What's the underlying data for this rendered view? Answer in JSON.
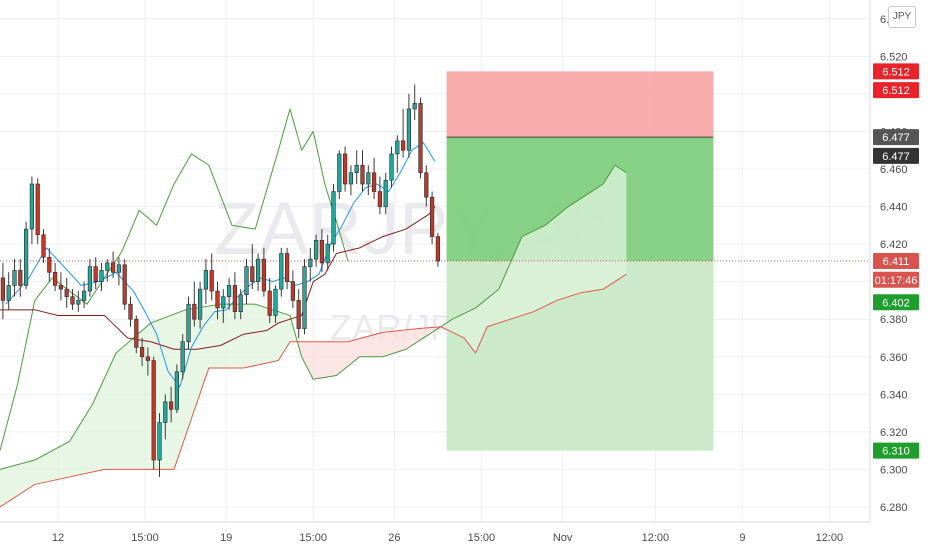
{
  "symbol_watermark": "ZARJPY, 4h",
  "symbol_sub_watermark": "ZAR/JPY",
  "currency_button": "JPY",
  "colors": {
    "up": "#26a69a",
    "down": "#c0392b",
    "grid": "#eceff4",
    "axis_bg": "#ffffff",
    "stop_zone": "#f7a3a3",
    "target_zone": "#7fcf7f",
    "target_zone_light": "#c7e8c3",
    "kijun": "#8b1c1c",
    "tenkan": "#2196f3",
    "chikou": "#4a9d3a",
    "span_a": "#4a9d3a",
    "span_b": "#e05a4a",
    "price_line": "#d9534f"
  },
  "chart_data": {
    "type": "candlestick",
    "title": "",
    "ylim": [
      6.272,
      6.55
    ],
    "y_ticks": [
      "6.540",
      "6.520",
      "6.500",
      "6.480",
      "6.460",
      "6.440",
      "6.420",
      "6.400",
      "6.380",
      "6.360",
      "6.340",
      "6.320",
      "6.300",
      "6.280"
    ],
    "x_ticks": [
      {
        "label": "12",
        "t": 10
      },
      {
        "label": "15:00",
        "t": 25
      },
      {
        "label": "19",
        "t": 39
      },
      {
        "label": "15:00",
        "t": 54
      },
      {
        "label": "26",
        "t": 68
      },
      {
        "label": "15:00",
        "t": 83
      },
      {
        "label": "Nov",
        "t": 97
      },
      {
        "label": "12:00",
        "t": 113
      },
      {
        "label": "9",
        "t": 128
      },
      {
        "label": "12:00",
        "t": 143
      }
    ],
    "x_range": [
      0,
      150
    ],
    "ohlc": [
      [
        6.402,
        6.41,
        6.38,
        6.39
      ],
      [
        6.39,
        6.405,
        6.385,
        6.398
      ],
      [
        6.398,
        6.412,
        6.392,
        6.406
      ],
      [
        6.406,
        6.412,
        6.392,
        6.398
      ],
      [
        6.398,
        6.432,
        6.396,
        6.428
      ],
      [
        6.428,
        6.456,
        6.42,
        6.452
      ],
      [
        6.452,
        6.455,
        6.42,
        6.425
      ],
      [
        6.425,
        6.428,
        6.41,
        6.413
      ],
      [
        6.413,
        6.418,
        6.4,
        6.405
      ],
      [
        6.405,
        6.41,
        6.395,
        6.398
      ],
      [
        6.398,
        6.405,
        6.39,
        6.396
      ],
      [
        6.396,
        6.402,
        6.386,
        6.392
      ],
      [
        6.392,
        6.396,
        6.385,
        6.388
      ],
      [
        6.388,
        6.395,
        6.384,
        6.39
      ],
      [
        6.39,
        6.4,
        6.386,
        6.395
      ],
      [
        6.395,
        6.412,
        6.392,
        6.408
      ],
      [
        6.408,
        6.413,
        6.396,
        6.4
      ],
      [
        6.4,
        6.41,
        6.395,
        6.406
      ],
      [
        6.406,
        6.412,
        6.4,
        6.41
      ],
      [
        6.41,
        6.416,
        6.402,
        6.405
      ],
      [
        6.405,
        6.413,
        6.398,
        6.409
      ],
      [
        6.409,
        6.412,
        6.385,
        6.388
      ],
      [
        6.388,
        6.392,
        6.376,
        6.38
      ],
      [
        6.38,
        6.382,
        6.362,
        6.365
      ],
      [
        6.365,
        6.37,
        6.355,
        6.36
      ],
      [
        6.36,
        6.365,
        6.35,
        6.358
      ],
      [
        6.358,
        6.36,
        6.3,
        6.305
      ],
      [
        6.305,
        6.33,
        6.296,
        6.325
      ],
      [
        6.325,
        6.34,
        6.316,
        6.336
      ],
      [
        6.336,
        6.344,
        6.325,
        6.332
      ],
      [
        6.332,
        6.356,
        6.33,
        6.352
      ],
      [
        6.352,
        6.372,
        6.348,
        6.368
      ],
      [
        6.368,
        6.392,
        6.364,
        6.388
      ],
      [
        6.388,
        6.4,
        6.376,
        6.38
      ],
      [
        6.38,
        6.4,
        6.375,
        6.396
      ],
      [
        6.396,
        6.412,
        6.388,
        6.406
      ],
      [
        6.406,
        6.415,
        6.39,
        6.395
      ],
      [
        6.395,
        6.4,
        6.38,
        6.386
      ],
      [
        6.386,
        6.396,
        6.378,
        6.392
      ],
      [
        6.392,
        6.402,
        6.385,
        6.398
      ],
      [
        6.398,
        6.405,
        6.38,
        6.384
      ],
      [
        6.384,
        6.396,
        6.38,
        6.393
      ],
      [
        6.393,
        6.412,
        6.388,
        6.408
      ],
      [
        6.408,
        6.42,
        6.396,
        6.4
      ],
      [
        6.4,
        6.415,
        6.395,
        6.412
      ],
      [
        6.412,
        6.418,
        6.392,
        6.395
      ],
      [
        6.395,
        6.402,
        6.378,
        6.382
      ],
      [
        6.382,
        6.398,
        6.378,
        6.396
      ],
      [
        6.396,
        6.418,
        6.392,
        6.415
      ],
      [
        6.415,
        6.418,
        6.396,
        6.4
      ],
      [
        6.4,
        6.406,
        6.386,
        6.39
      ],
      [
        6.39,
        6.396,
        6.37,
        6.375
      ],
      [
        6.375,
        6.412,
        6.372,
        6.408
      ],
      [
        6.408,
        6.418,
        6.4,
        6.412
      ],
      [
        6.412,
        6.425,
        6.408,
        6.422
      ],
      [
        6.422,
        6.428,
        6.405,
        6.41
      ],
      [
        6.41,
        6.425,
        6.406,
        6.42
      ],
      [
        6.42,
        6.452,
        6.416,
        6.448
      ],
      [
        6.448,
        6.47,
        6.444,
        6.468
      ],
      [
        6.468,
        6.472,
        6.448,
        6.452
      ],
      [
        6.452,
        6.462,
        6.446,
        6.458
      ],
      [
        6.458,
        6.47,
        6.452,
        6.462
      ],
      [
        6.462,
        6.47,
        6.448,
        6.452
      ],
      [
        6.452,
        6.462,
        6.446,
        6.458
      ],
      [
        6.458,
        6.466,
        6.444,
        6.448
      ],
      [
        6.448,
        6.456,
        6.436,
        6.44
      ],
      [
        6.44,
        6.458,
        6.436,
        6.454
      ],
      [
        6.454,
        6.472,
        6.45,
        6.468
      ],
      [
        6.468,
        6.478,
        6.458,
        6.475
      ],
      [
        6.475,
        6.492,
        6.466,
        6.47
      ],
      [
        6.47,
        6.5,
        6.466,
        6.492
      ],
      [
        6.492,
        6.505,
        6.486,
        6.495
      ],
      [
        6.495,
        6.498,
        6.455,
        6.458
      ],
      [
        6.458,
        6.462,
        6.44,
        6.445
      ],
      [
        6.445,
        6.448,
        6.42,
        6.424
      ],
      [
        6.424,
        6.426,
        6.408,
        6.411
      ]
    ],
    "overlays": {
      "tenkan": [
        [
          1,
          6.388
        ],
        [
          5,
          6.402
        ],
        [
          8,
          6.418
        ],
        [
          11,
          6.408
        ],
        [
          14,
          6.398
        ],
        [
          17,
          6.4
        ],
        [
          20,
          6.405
        ],
        [
          23,
          6.395
        ],
        [
          25,
          6.384
        ],
        [
          27,
          6.372
        ],
        [
          29,
          6.352
        ],
        [
          31,
          6.344
        ],
        [
          33,
          6.365
        ],
        [
          35,
          6.376
        ],
        [
          37,
          6.384
        ],
        [
          39,
          6.385
        ],
        [
          41,
          6.392
        ],
        [
          43,
          6.398
        ],
        [
          45,
          6.402
        ],
        [
          47,
          6.4
        ],
        [
          49,
          6.402
        ],
        [
          51,
          6.398
        ],
        [
          53,
          6.4
        ],
        [
          55,
          6.404
        ],
        [
          57,
          6.42
        ],
        [
          59,
          6.43
        ],
        [
          61,
          6.442
        ],
        [
          63,
          6.45
        ],
        [
          65,
          6.452
        ],
        [
          67,
          6.448
        ],
        [
          69,
          6.458
        ],
        [
          71,
          6.47
        ],
        [
          73,
          6.474
        ],
        [
          75,
          6.464
        ]
      ],
      "kijun": [
        [
          0,
          6.385
        ],
        [
          6,
          6.385
        ],
        [
          10,
          6.382
        ],
        [
          14,
          6.382
        ],
        [
          18,
          6.382
        ],
        [
          22,
          6.37
        ],
        [
          26,
          6.368
        ],
        [
          30,
          6.364
        ],
        [
          34,
          6.364
        ],
        [
          38,
          6.366
        ],
        [
          42,
          6.372
        ],
        [
          46,
          6.374
        ],
        [
          48,
          6.378
        ],
        [
          50,
          6.38
        ],
        [
          52,
          6.382
        ],
        [
          54,
          6.4
        ],
        [
          56,
          6.404
        ],
        [
          58,
          6.415
        ],
        [
          62,
          6.418
        ],
        [
          66,
          6.424
        ],
        [
          70,
          6.428
        ],
        [
          74,
          6.436
        ],
        [
          75,
          6.44
        ]
      ],
      "chikou": [
        [
          0,
          6.31
        ],
        [
          3,
          6.345
        ],
        [
          6,
          6.39
        ],
        [
          9,
          6.402
        ],
        [
          12,
          6.395
        ],
        [
          15,
          6.388
        ],
        [
          18,
          6.402
        ],
        [
          21,
          6.416
        ],
        [
          24,
          6.438
        ],
        [
          27,
          6.43
        ],
        [
          30,
          6.452
        ],
        [
          33,
          6.468
        ],
        [
          36,
          6.462
        ],
        [
          40,
          6.43
        ],
        [
          44,
          6.428
        ],
        [
          48,
          6.47
        ],
        [
          50,
          6.492
        ],
        [
          52,
          6.47
        ],
        [
          54,
          6.48
        ],
        [
          56,
          6.452
        ],
        [
          58,
          6.432
        ],
        [
          60,
          6.411
        ]
      ],
      "span_a": [
        [
          0,
          6.3
        ],
        [
          6,
          6.305
        ],
        [
          12,
          6.315
        ],
        [
          16,
          6.335
        ],
        [
          20,
          6.362
        ],
        [
          26,
          6.378
        ],
        [
          32,
          6.385
        ],
        [
          38,
          6.388
        ],
        [
          44,
          6.388
        ],
        [
          50,
          6.382
        ],
        [
          52,
          6.36
        ],
        [
          54,
          6.348
        ],
        [
          58,
          6.35
        ],
        [
          62,
          6.36
        ],
        [
          66,
          6.36
        ],
        [
          70,
          6.364
        ],
        [
          74,
          6.372
        ],
        [
          78,
          6.38
        ],
        [
          82,
          6.386
        ],
        [
          86,
          6.396
        ],
        [
          90,
          6.424
        ],
        [
          94,
          6.43
        ],
        [
          98,
          6.44
        ],
        [
          102,
          6.448
        ],
        [
          104,
          6.452
        ],
        [
          106,
          6.462
        ],
        [
          108,
          6.458
        ]
      ],
      "span_b": [
        [
          0,
          6.28
        ],
        [
          6,
          6.292
        ],
        [
          12,
          6.296
        ],
        [
          18,
          6.3
        ],
        [
          24,
          6.3
        ],
        [
          30,
          6.3
        ],
        [
          36,
          6.354
        ],
        [
          42,
          6.354
        ],
        [
          48,
          6.358
        ],
        [
          50,
          6.368
        ],
        [
          54,
          6.368
        ],
        [
          60,
          6.368
        ],
        [
          66,
          6.373
        ],
        [
          72,
          6.375
        ],
        [
          76,
          6.376
        ],
        [
          80,
          6.37
        ],
        [
          82,
          6.362
        ],
        [
          84,
          6.376
        ],
        [
          88,
          6.38
        ],
        [
          92,
          6.384
        ],
        [
          96,
          6.39
        ],
        [
          100,
          6.394
        ],
        [
          104,
          6.396
        ],
        [
          108,
          6.404
        ]
      ]
    },
    "position": {
      "entry": 6.477,
      "stop": 6.512,
      "target": 6.31,
      "zone_x_from": 77,
      "zone_x_to": 123
    },
    "price_tags": [
      {
        "label": "6.512",
        "value": 6.512,
        "color": "#e8242a"
      },
      {
        "label": "6.512",
        "value": 6.502,
        "color": "#e8242a"
      },
      {
        "label": "6.477",
        "value": 6.477,
        "color": "#555555"
      },
      {
        "label": "6.477",
        "value": 6.467,
        "color": "#333333"
      },
      {
        "label": "6.411",
        "value": 6.411,
        "color": "#d9534f"
      },
      {
        "label": "01:17:46",
        "value": 6.401,
        "color": "#d9534f"
      },
      {
        "label": "6.402",
        "value": 6.389,
        "color": "#1f9e2d"
      },
      {
        "label": "6.310",
        "value": 6.31,
        "color": "#1f9e2d"
      }
    ],
    "last_price": 6.411
  }
}
